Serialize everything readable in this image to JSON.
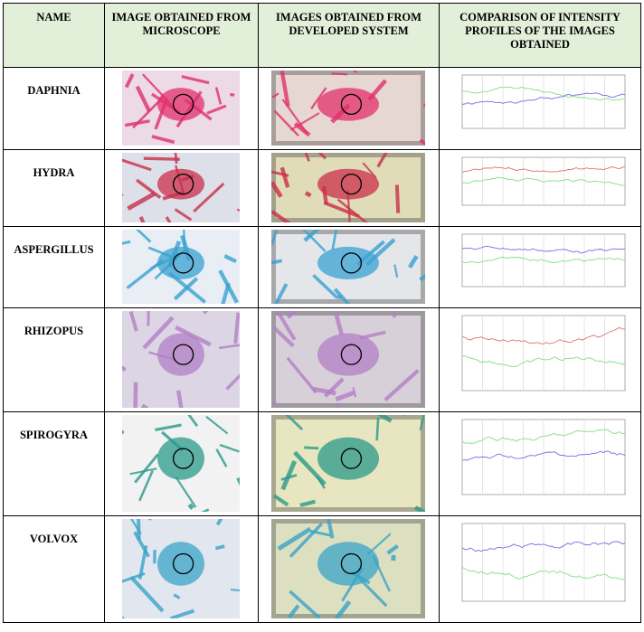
{
  "table": {
    "header": [
      "NAME",
      "IMAGE OBTAINED FROM MICROSCOPE",
      "IMAGES OBTAINED FROM DEVELOPED SYSTEM",
      "COMPARISON OF INTENSITY PROFILES OF THE IMAGES OBTAINED"
    ],
    "rows": [
      "DAPHNIA",
      "HYDRA",
      "ASPERGILLUS",
      "RHIZOPUS",
      "SPIROGYRA",
      "VOLVOX"
    ]
  }
}
